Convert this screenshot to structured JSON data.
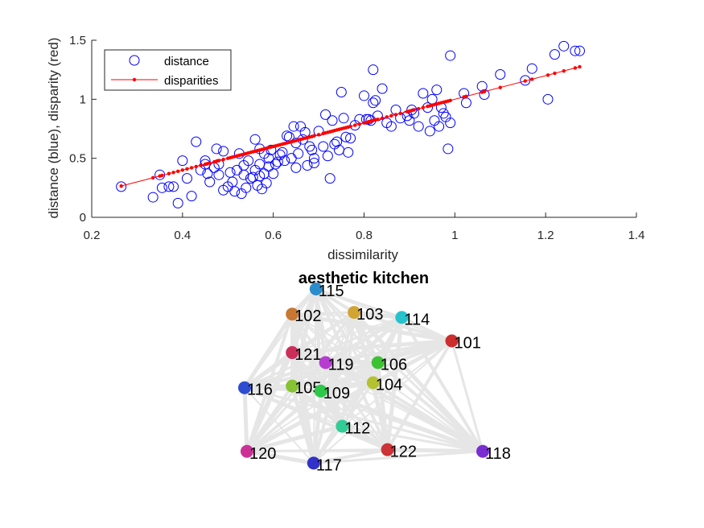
{
  "chart_data": [
    {
      "type": "scatter",
      "xlabel": "dissimilarity",
      "ylabel": "distance (blue), disparity (red)",
      "xlim": [
        0.2,
        1.4
      ],
      "ylim": [
        0,
        1.5
      ],
      "xticks": [
        "0.2",
        "0.4",
        "0.6",
        "0.8",
        "1",
        "1.2",
        "1.4"
      ],
      "yticks": [
        "0",
        "0.5",
        "1",
        "1.5"
      ],
      "grid": false,
      "legend_position": "top-left",
      "colors": {
        "distance": "#0000ff",
        "disparities": "#ff0000",
        "axis": "#262626"
      },
      "legend": [
        {
          "name": "distance",
          "marker": "circle"
        },
        {
          "name": "disparities",
          "marker": "line-dot"
        }
      ],
      "series": [
        {
          "name": "distance",
          "points": [
            [
              0.265,
              0.26
            ],
            [
              0.335,
              0.17
            ],
            [
              0.35,
              0.36
            ],
            [
              0.355,
              0.25
            ],
            [
              0.37,
              0.26
            ],
            [
              0.38,
              0.26
            ],
            [
              0.39,
              0.12
            ],
            [
              0.4,
              0.48
            ],
            [
              0.41,
              0.33
            ],
            [
              0.42,
              0.18
            ],
            [
              0.43,
              0.64
            ],
            [
              0.44,
              0.4
            ],
            [
              0.45,
              0.48
            ],
            [
              0.45,
              0.45
            ],
            [
              0.455,
              0.37
            ],
            [
              0.46,
              0.3
            ],
            [
              0.47,
              0.42
            ],
            [
              0.475,
              0.58
            ],
            [
              0.48,
              0.45
            ],
            [
              0.48,
              0.36
            ],
            [
              0.49,
              0.56
            ],
            [
              0.49,
              0.23
            ],
            [
              0.5,
              0.26
            ],
            [
              0.505,
              0.38
            ],
            [
              0.51,
              0.3
            ],
            [
              0.515,
              0.22
            ],
            [
              0.52,
              0.4
            ],
            [
              0.525,
              0.54
            ],
            [
              0.53,
              0.2
            ],
            [
              0.535,
              0.44
            ],
            [
              0.535,
              0.36
            ],
            [
              0.54,
              0.25
            ],
            [
              0.545,
              0.48
            ],
            [
              0.55,
              0.33
            ],
            [
              0.555,
              0.34
            ],
            [
              0.56,
              0.66
            ],
            [
              0.56,
              0.4
            ],
            [
              0.565,
              0.27
            ],
            [
              0.57,
              0.58
            ],
            [
              0.57,
              0.45
            ],
            [
              0.57,
              0.35
            ],
            [
              0.575,
              0.24
            ],
            [
              0.58,
              0.54
            ],
            [
              0.58,
              0.37
            ],
            [
              0.585,
              0.29
            ],
            [
              0.59,
              0.5
            ],
            [
              0.59,
              0.43
            ],
            [
              0.595,
              0.57
            ],
            [
              0.6,
              0.37
            ],
            [
              0.605,
              0.45
            ],
            [
              0.61,
              0.47
            ],
            [
              0.615,
              0.53
            ],
            [
              0.62,
              0.55
            ],
            [
              0.625,
              0.48
            ],
            [
              0.63,
              0.69
            ],
            [
              0.635,
              0.68
            ],
            [
              0.64,
              0.5
            ],
            [
              0.645,
              0.77
            ],
            [
              0.65,
              0.63
            ],
            [
              0.65,
              0.42
            ],
            [
              0.655,
              0.54
            ],
            [
              0.66,
              0.77
            ],
            [
              0.665,
              0.66
            ],
            [
              0.67,
              0.72
            ],
            [
              0.675,
              0.44
            ],
            [
              0.68,
              0.6
            ],
            [
              0.685,
              0.57
            ],
            [
              0.69,
              0.5
            ],
            [
              0.69,
              0.46
            ],
            [
              0.7,
              0.73
            ],
            [
              0.71,
              0.6
            ],
            [
              0.715,
              0.87
            ],
            [
              0.72,
              0.52
            ],
            [
              0.725,
              0.33
            ],
            [
              0.73,
              0.82
            ],
            [
              0.735,
              0.62
            ],
            [
              0.74,
              0.64
            ],
            [
              0.745,
              0.57
            ],
            [
              0.75,
              1.06
            ],
            [
              0.755,
              0.84
            ],
            [
              0.76,
              0.68
            ],
            [
              0.765,
              0.55
            ],
            [
              0.77,
              0.67
            ],
            [
              0.78,
              0.78
            ],
            [
              0.79,
              0.83
            ],
            [
              0.8,
              1.03
            ],
            [
              0.805,
              0.83
            ],
            [
              0.81,
              0.83
            ],
            [
              0.815,
              0.82
            ],
            [
              0.82,
              1.25
            ],
            [
              0.82,
              0.97
            ],
            [
              0.825,
              0.99
            ],
            [
              0.83,
              0.86
            ],
            [
              0.84,
              1.09
            ],
            [
              0.85,
              0.8
            ],
            [
              0.86,
              0.77
            ],
            [
              0.87,
              0.91
            ],
            [
              0.88,
              0.84
            ],
            [
              0.895,
              0.86
            ],
            [
              0.9,
              0.82
            ],
            [
              0.905,
              0.91
            ],
            [
              0.91,
              0.88
            ],
            [
              0.92,
              0.77
            ],
            [
              0.93,
              1.05
            ],
            [
              0.94,
              0.93
            ],
            [
              0.945,
              0.73
            ],
            [
              0.95,
              1.0
            ],
            [
              0.955,
              0.82
            ],
            [
              0.96,
              1.08
            ],
            [
              0.965,
              0.77
            ],
            [
              0.97,
              0.93
            ],
            [
              0.975,
              0.88
            ],
            [
              0.98,
              0.85
            ],
            [
              0.985,
              0.58
            ],
            [
              0.99,
              1.37
            ],
            [
              0.99,
              0.8
            ],
            [
              1.02,
              1.05
            ],
            [
              1.025,
              0.97
            ],
            [
              1.06,
              1.11
            ],
            [
              1.065,
              1.04
            ],
            [
              1.1,
              1.21
            ],
            [
              1.155,
              1.16
            ],
            [
              1.17,
              1.26
            ],
            [
              1.205,
              1.0
            ],
            [
              1.22,
              1.38
            ],
            [
              1.24,
              1.45
            ],
            [
              1.265,
              1.41
            ],
            [
              1.275,
              1.41
            ]
          ]
        },
        {
          "name": "disparities",
          "line": {
            "from": [
              0.265,
              0.265
            ],
            "to": [
              1.275,
              1.275
            ]
          },
          "marker_x": [
            0.265,
            0.335,
            0.35,
            0.355,
            0.37,
            0.38,
            0.39,
            0.4,
            0.41,
            0.42,
            0.43,
            0.44,
            0.45,
            0.455,
            0.46,
            0.47,
            0.475,
            0.48,
            0.49,
            0.5,
            0.505,
            0.51,
            0.515,
            0.52,
            0.525,
            0.53,
            0.535,
            0.54,
            0.545,
            0.55,
            0.555,
            0.56,
            0.565,
            0.57,
            0.575,
            0.58,
            0.585,
            0.59,
            0.595,
            0.6,
            0.605,
            0.61,
            0.615,
            0.62,
            0.625,
            0.63,
            0.635,
            0.64,
            0.645,
            0.65,
            0.655,
            0.66,
            0.665,
            0.67,
            0.675,
            0.68,
            0.685,
            0.69,
            0.7,
            0.71,
            0.715,
            0.72,
            0.725,
            0.73,
            0.735,
            0.74,
            0.745,
            0.75,
            0.755,
            0.76,
            0.765,
            0.77,
            0.78,
            0.79,
            0.8,
            0.805,
            0.81,
            0.815,
            0.82,
            0.825,
            0.83,
            0.84,
            0.85,
            0.86,
            0.87,
            0.88,
            0.895,
            0.9,
            0.905,
            0.91,
            0.92,
            0.93,
            0.94,
            0.945,
            0.95,
            0.955,
            0.96,
            0.965,
            0.97,
            0.975,
            0.98,
            0.985,
            0.99,
            1.02,
            1.025,
            1.06,
            1.065,
            1.1,
            1.155,
            1.17,
            1.205,
            1.22,
            1.24,
            1.265,
            1.275
          ]
        }
      ]
    },
    {
      "type": "network",
      "title": "aesthetic kitchen",
      "edge_color": "#e6e6e6",
      "nodes": [
        {
          "label": "115",
          "color": "#2b8ccc",
          "x": 0.3,
          "y": 0.0
        },
        {
          "label": "102",
          "color": "#c87832",
          "x": 0.2,
          "y": 0.15
        },
        {
          "label": "103",
          "color": "#d2a533",
          "x": 0.46,
          "y": 0.14
        },
        {
          "label": "114",
          "color": "#27c2cc",
          "x": 0.66,
          "y": 0.17
        },
        {
          "label": "101",
          "color": "#cc2e2e",
          "x": 0.87,
          "y": 0.31
        },
        {
          "label": "121",
          "color": "#cc2e5a",
          "x": 0.2,
          "y": 0.38
        },
        {
          "label": "119",
          "color": "#b63cd2",
          "x": 0.34,
          "y": 0.44
        },
        {
          "label": "106",
          "color": "#3cc232",
          "x": 0.56,
          "y": 0.44
        },
        {
          "label": "116",
          "color": "#2d4cd2",
          "x": 0.0,
          "y": 0.59
        },
        {
          "label": "105",
          "color": "#86c232",
          "x": 0.2,
          "y": 0.58
        },
        {
          "label": "109",
          "color": "#2dc84a",
          "x": 0.32,
          "y": 0.61
        },
        {
          "label": "104",
          "color": "#b4c232",
          "x": 0.54,
          "y": 0.56
        },
        {
          "label": "112",
          "color": "#32cc96",
          "x": 0.41,
          "y": 0.82
        },
        {
          "label": "120",
          "color": "#cc3296",
          "x": 0.01,
          "y": 0.97
        },
        {
          "label": "122",
          "color": "#cc3236",
          "x": 0.6,
          "y": 0.96
        },
        {
          "label": "118",
          "color": "#7a2ed2",
          "x": 1.0,
          "y": 0.97
        },
        {
          "label": "117",
          "color": "#3232c8",
          "x": 0.29,
          "y": 1.04
        }
      ]
    }
  ]
}
